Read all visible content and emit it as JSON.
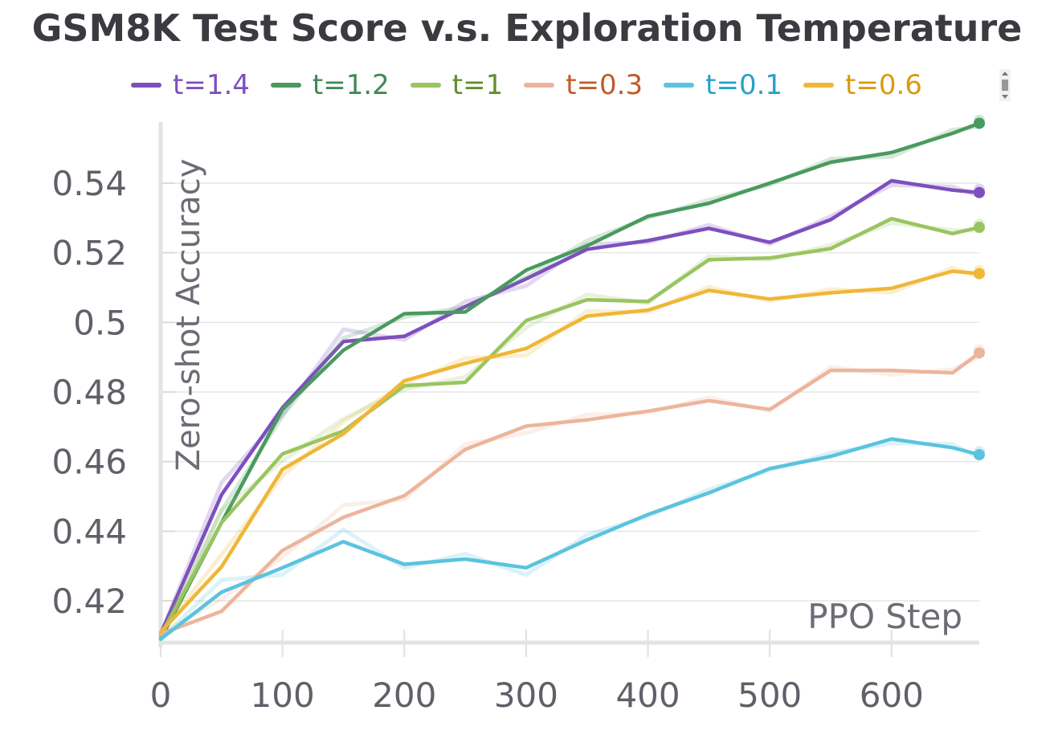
{
  "chart_data": {
    "type": "line",
    "title": "GSM8K Test Score v.s. Exploration Temperature",
    "xlabel": "PPO Step",
    "ylabel": "Zero-shot Accuracy",
    "xlim": [
      0,
      672
    ],
    "ylim": [
      0.408,
      0.558
    ],
    "x_ticks": [
      0,
      100,
      200,
      300,
      400,
      500,
      600
    ],
    "x_tick_labels": [
      "0",
      "100",
      "200",
      "300",
      "400",
      "500",
      "600"
    ],
    "y_ticks": [
      0.42,
      0.44,
      0.46,
      0.48,
      0.5,
      0.52,
      0.54
    ],
    "y_tick_labels": [
      "0.42",
      "0.44",
      "0.46",
      "0.48",
      "0.5",
      "0.52",
      "0.54"
    ],
    "grid": true,
    "legend_position": "top",
    "x": [
      0,
      50,
      100,
      150,
      200,
      250,
      300,
      350,
      400,
      450,
      500,
      550,
      600,
      650,
      672
    ],
    "series": [
      {
        "name": "t=1.4",
        "color": "#7e4fbf",
        "label_color": "#7e4fbf",
        "values": [
          0.4105,
          0.4505,
          0.4755,
          0.4945,
          0.496,
          0.5045,
          0.5125,
          0.521,
          0.5235,
          0.527,
          0.523,
          0.5295,
          0.5407,
          0.538,
          0.5373
        ]
      },
      {
        "name": "t=1.2",
        "color": "#4a9a5f",
        "label_color": "#3f8a55",
        "values": [
          0.409,
          0.4425,
          0.475,
          0.492,
          0.5025,
          0.503,
          0.515,
          0.522,
          0.5305,
          0.5342,
          0.54,
          0.546,
          0.5488,
          0.5543,
          0.5572
        ]
      },
      {
        "name": "t=1",
        "color": "#99c560",
        "label_color": "#5f8f2a",
        "values": [
          0.41,
          0.4425,
          0.4622,
          0.4688,
          0.4818,
          0.4828,
          0.5005,
          0.5065,
          0.506,
          0.518,
          0.5185,
          0.5212,
          0.5298,
          0.5255,
          0.5273
        ]
      },
      {
        "name": "t=0.3",
        "color": "#ecb59b",
        "label_color": "#c15a2a",
        "values": [
          0.4105,
          0.417,
          0.4345,
          0.444,
          0.4502,
          0.4635,
          0.4702,
          0.472,
          0.4745,
          0.4775,
          0.475,
          0.4862,
          0.4862,
          0.4855,
          0.4912
        ]
      },
      {
        "name": "t=0.1",
        "color": "#5bc3de",
        "label_color": "#27a1c7",
        "values": [
          0.409,
          0.4225,
          0.4295,
          0.437,
          0.4305,
          0.432,
          0.4295,
          0.4375,
          0.4448,
          0.451,
          0.458,
          0.4615,
          0.4665,
          0.464,
          0.462
        ]
      },
      {
        "name": "t=0.6",
        "color": "#efb737",
        "label_color": "#d99a12",
        "values": [
          0.411,
          0.4298,
          0.4578,
          0.468,
          0.4832,
          0.4882,
          0.4925,
          0.5018,
          0.5035,
          0.5092,
          0.5067,
          0.5085,
          0.5098,
          0.5147,
          0.514
        ]
      }
    ]
  }
}
